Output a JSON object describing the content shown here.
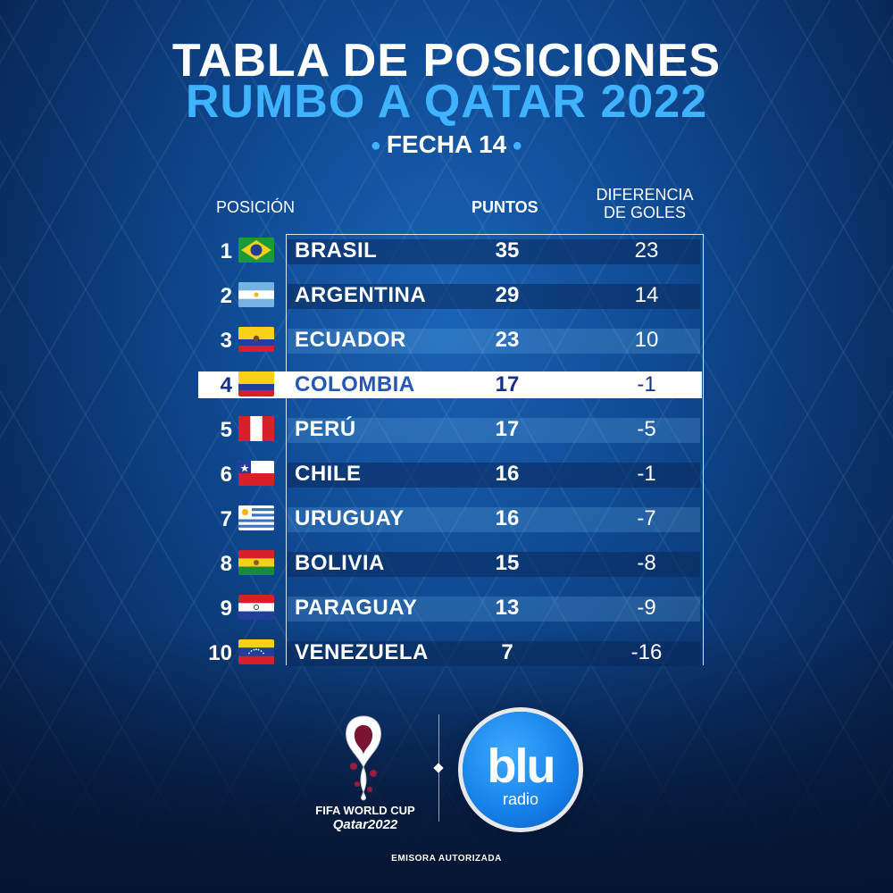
{
  "header": {
    "title_line1": "TABLA DE POSICIONES",
    "title_line2": "RUMBO A QATAR 2022",
    "subtitle": "FECHA 14"
  },
  "columns": {
    "position": "POSICIÓN",
    "points": "PUNTOS",
    "goal_diff_line1": "DIFERENCIA",
    "goal_diff_line2": "DE GOLES"
  },
  "standings": [
    {
      "pos": "1",
      "team": "BRASIL",
      "points": "35",
      "diff": "23",
      "flag": "brazil-flag-icon"
    },
    {
      "pos": "2",
      "team": "ARGENTINA",
      "points": "29",
      "diff": "14",
      "flag": "argentina-flag-icon"
    },
    {
      "pos": "3",
      "team": "ECUADOR",
      "points": "23",
      "diff": "10",
      "flag": "ecuador-flag-icon"
    },
    {
      "pos": "4",
      "team": "COLOMBIA",
      "points": "17",
      "diff": "-1",
      "flag": "colombia-flag-icon"
    },
    {
      "pos": "5",
      "team": "PERÚ",
      "points": "17",
      "diff": "-5",
      "flag": "peru-flag-icon"
    },
    {
      "pos": "6",
      "team": "CHILE",
      "points": "16",
      "diff": "-1",
      "flag": "chile-flag-icon"
    },
    {
      "pos": "7",
      "team": "URUGUAY",
      "points": "16",
      "diff": "-7",
      "flag": "uruguay-flag-icon"
    },
    {
      "pos": "8",
      "team": "BOLIVIA",
      "points": "15",
      "diff": "-8",
      "flag": "bolivia-flag-icon"
    },
    {
      "pos": "9",
      "team": "PARAGUAY",
      "points": "13",
      "diff": "-9",
      "flag": "paraguay-flag-icon"
    },
    {
      "pos": "10",
      "team": "VENEZUELA",
      "points": "7",
      "diff": "-16",
      "flag": "venezuela-flag-icon"
    }
  ],
  "logos": {
    "worldcup_line1": "FIFA WORLD CUP",
    "worldcup_line2": "Qatar2022",
    "blu_main": "blu",
    "blu_sub": "radio"
  },
  "footer": "EMISORA AUTORIZADA",
  "colors": {
    "accent": "#3fb3ff",
    "highlight_row_bg": "#ffffff",
    "highlight_text": "#2456b8"
  }
}
